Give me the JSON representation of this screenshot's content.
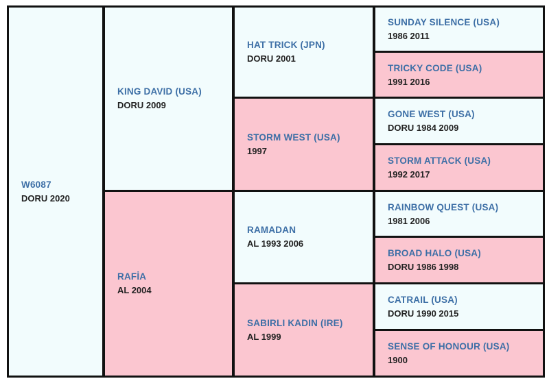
{
  "pedigree": {
    "horse": {
      "name": "W6087",
      "info": "DORU 2020"
    },
    "sire": {
      "name": "KING DAVID (USA)",
      "info": "DORU 2009"
    },
    "dam": {
      "name": "RAFİA",
      "info": "AL 2004"
    },
    "sire_sire": {
      "name": "HAT TRICK (JPN)",
      "info": "DORU 2001"
    },
    "sire_dam": {
      "name": "STORM WEST (USA)",
      "info": "1997"
    },
    "dam_sire": {
      "name": "RAMADAN",
      "info": "AL 1993 2006"
    },
    "dam_dam": {
      "name": "SABIRLI KADIN (IRE)",
      "info": "AL 1999"
    },
    "gen4": [
      {
        "name": "SUNDAY SILENCE (USA)",
        "info": "1986 2011"
      },
      {
        "name": "TRICKY CODE (USA)",
        "info": "1991 2016"
      },
      {
        "name": "GONE WEST (USA)",
        "info": "DORU 1984 2009"
      },
      {
        "name": "STORM ATTACK (USA)",
        "info": "1992 2017"
      },
      {
        "name": "RAINBOW QUEST (USA)",
        "info": "1981 2006"
      },
      {
        "name": "BROAD HALO (USA)",
        "info": "DORU 1986 1998"
      },
      {
        "name": "CATRAIL (USA)",
        "info": "DORU 1990 2015"
      },
      {
        "name": "SENSE OF HONOUR (USA)",
        "info": "1900"
      }
    ]
  },
  "colors": {
    "sire_cell": "#f2fcfd",
    "dam_cell": "#fbc6d0",
    "name_text": "#3d6fa6",
    "info_text": "#222222",
    "border": "#111111"
  }
}
